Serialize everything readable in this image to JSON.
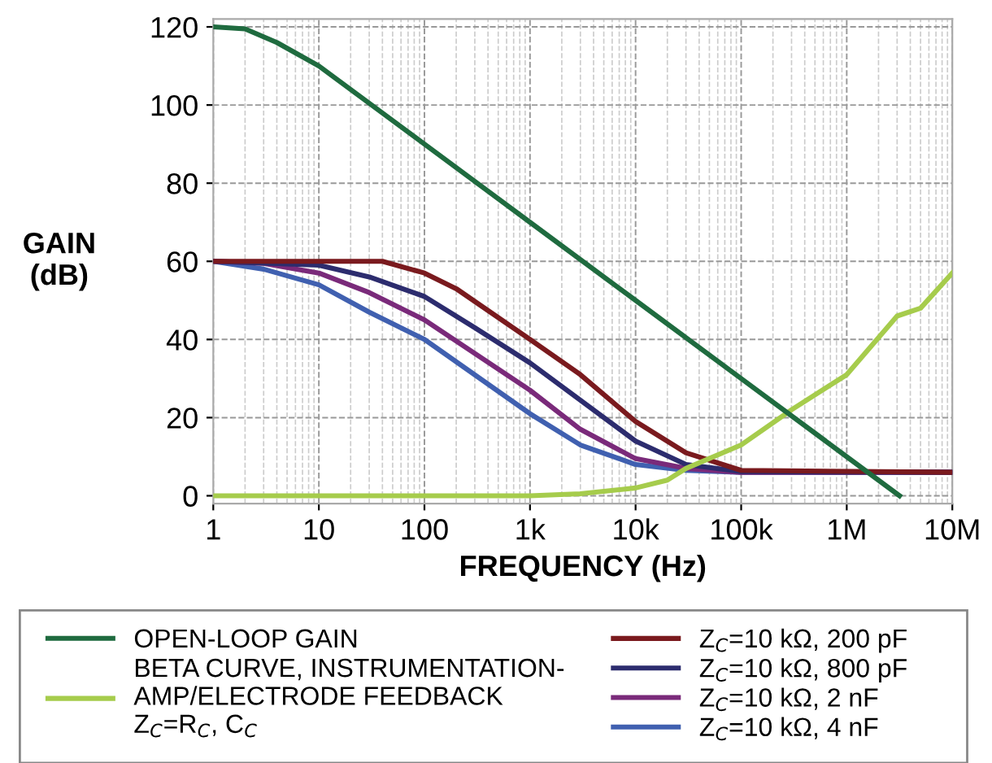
{
  "chart_data": {
    "type": "line",
    "xlabel": "FREQUENCY (Hz)",
    "ylabel": "GAIN\n(dB)",
    "log": "x",
    "grid": true,
    "legend": "bottom",
    "line_style": "solid",
    "marker": "none",
    "xlim": [
      1,
      10000000
    ],
    "xticks": [
      {
        "value": 1,
        "label": "1"
      },
      {
        "value": 10,
        "label": "10"
      },
      {
        "value": 100,
        "label": "100"
      },
      {
        "value": 1000,
        "label": "1k"
      },
      {
        "value": 10000,
        "label": "10k"
      },
      {
        "value": 100000,
        "label": "100k"
      },
      {
        "value": 1000000,
        "label": "1M"
      },
      {
        "value": 10000000,
        "label": "10M"
      }
    ],
    "ylim": [
      -2,
      122
    ],
    "yticks": [
      0,
      20,
      40,
      60,
      80,
      100,
      120
    ],
    "series": [
      {
        "name": "OPEN-LOOP GAIN",
        "color": "#1f6b3f",
        "x": [
          1,
          2,
          4,
          10,
          100,
          1000,
          10000,
          100000,
          1000000,
          3160000
        ],
        "values": [
          120,
          119.5,
          116,
          110,
          90,
          70,
          50,
          30,
          10,
          0
        ]
      },
      {
        "name": "BETA CURVE, INSTRUMENTATION-\nAMP/ELECTRODE FEEDBACK\nZ$_{C}$=R$_{C}$, C$_{C}$",
        "color": "#a6cc4c",
        "x": [
          1,
          1000,
          3000,
          10000,
          20000,
          30000,
          100000,
          300000,
          1000000,
          3000000,
          5000000,
          10000000
        ],
        "values": [
          0,
          0,
          0.5,
          2,
          4,
          7,
          13,
          22,
          31,
          46,
          48,
          57
        ]
      },
      {
        "name": "Z$_{C}$=10 kΩ, 200 pF",
        "color": "#7a1a1e",
        "x": [
          1,
          40,
          100,
          200,
          1000,
          3000,
          10000,
          30000,
          100000,
          10000000
        ],
        "values": [
          60,
          60,
          57,
          53,
          40,
          31,
          19,
          11,
          6.5,
          6
        ]
      },
      {
        "name": "Z$_{C}$=10 kΩ, 800 pF",
        "color": "#2c2c6e",
        "x": [
          1,
          10,
          30,
          100,
          300,
          1000,
          10000,
          30000,
          100000,
          10000000
        ],
        "values": [
          60,
          59,
          56,
          51,
          43,
          34,
          14,
          8,
          6.2,
          6
        ]
      },
      {
        "name": "Z$_{C}$=10 kΩ, 2 nF",
        "color": "#7a2a7a",
        "x": [
          1,
          3,
          10,
          30,
          100,
          1000,
          3000,
          10000,
          30000,
          100000,
          10000000
        ],
        "values": [
          60,
          59.5,
          57,
          52,
          45,
          27,
          17,
          9.5,
          7,
          6,
          6
        ]
      },
      {
        "name": "Z$_{C}$=10 kΩ, 4 nF",
        "color": "#4060b0",
        "x": [
          1,
          3,
          10,
          30,
          100,
          1000,
          3000,
          10000,
          30000,
          100000,
          10000000
        ],
        "values": [
          60,
          58,
          54,
          47,
          40,
          21,
          13,
          8,
          6.5,
          6,
          6
        ]
      }
    ]
  }
}
